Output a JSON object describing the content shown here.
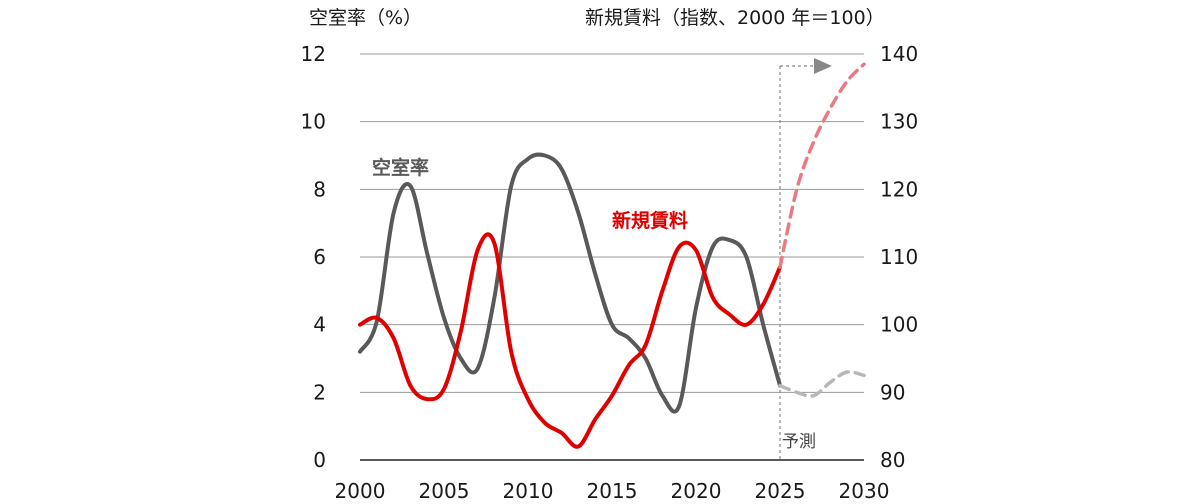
{
  "chart_data": {
    "type": "line",
    "left_axis_label": "空室率（%）",
    "right_axis_label": "新規賃料（指数、2000 年＝100）",
    "x_ticks": [
      2000,
      2005,
      2010,
      2015,
      2020,
      2025,
      2030
    ],
    "xlim": [
      2000,
      2030
    ],
    "y_left": {
      "ticks": [
        0,
        2,
        4,
        6,
        8,
        10,
        12
      ],
      "lim": [
        0,
        12
      ]
    },
    "y_right": {
      "ticks": [
        80,
        90,
        100,
        110,
        120,
        130,
        140
      ],
      "lim": [
        80,
        140
      ]
    },
    "grid": true,
    "forecast_start": 2025,
    "forecast_label": "予測",
    "series": [
      {
        "name": "空室率",
        "axis": "left",
        "color": "#595959",
        "forecast_color": "#b8b8b8",
        "x": [
          2000,
          2001,
          2002,
          2003,
          2004,
          2005,
          2006,
          2007,
          2008,
          2009,
          2010,
          2011,
          2012,
          2013,
          2014,
          2015,
          2016,
          2017,
          2018,
          2019,
          2020,
          2021,
          2022,
          2023,
          2024,
          2025
        ],
        "y": [
          3.2,
          4.1,
          7.3,
          8.1,
          6.1,
          4.2,
          3.0,
          2.7,
          4.8,
          8.1,
          8.9,
          9.0,
          8.6,
          7.3,
          5.5,
          4.0,
          3.6,
          3.0,
          1.9,
          1.6,
          4.5,
          6.3,
          6.5,
          6.0,
          4.0,
          2.2
        ],
        "forecast_x": [
          2025,
          2026,
          2027,
          2028,
          2029,
          2030
        ],
        "forecast_y": [
          2.2,
          2.0,
          1.9,
          2.3,
          2.6,
          2.5
        ]
      },
      {
        "name": "新規賃料",
        "axis": "right",
        "color": "#e00000",
        "forecast_color": "#ea7a80",
        "x": [
          2000,
          2001,
          2002,
          2003,
          2004,
          2005,
          2006,
          2007,
          2008,
          2009,
          2010,
          2011,
          2012,
          2013,
          2014,
          2015,
          2016,
          2017,
          2018,
          2019,
          2020,
          2021,
          2022,
          2023,
          2024,
          2025
        ],
        "y": [
          100,
          101,
          98,
          91,
          89,
          90.5,
          99,
          111,
          112,
          96,
          89,
          85.5,
          84,
          82,
          86,
          89.5,
          94,
          97,
          105,
          111.5,
          111,
          104,
          101.5,
          100,
          103,
          108.5
        ],
        "forecast_x": [
          2025,
          2026,
          2027,
          2028,
          2029,
          2030
        ],
        "forecast_y": [
          108.5,
          120,
          127,
          132,
          136,
          138.5
        ]
      }
    ]
  }
}
